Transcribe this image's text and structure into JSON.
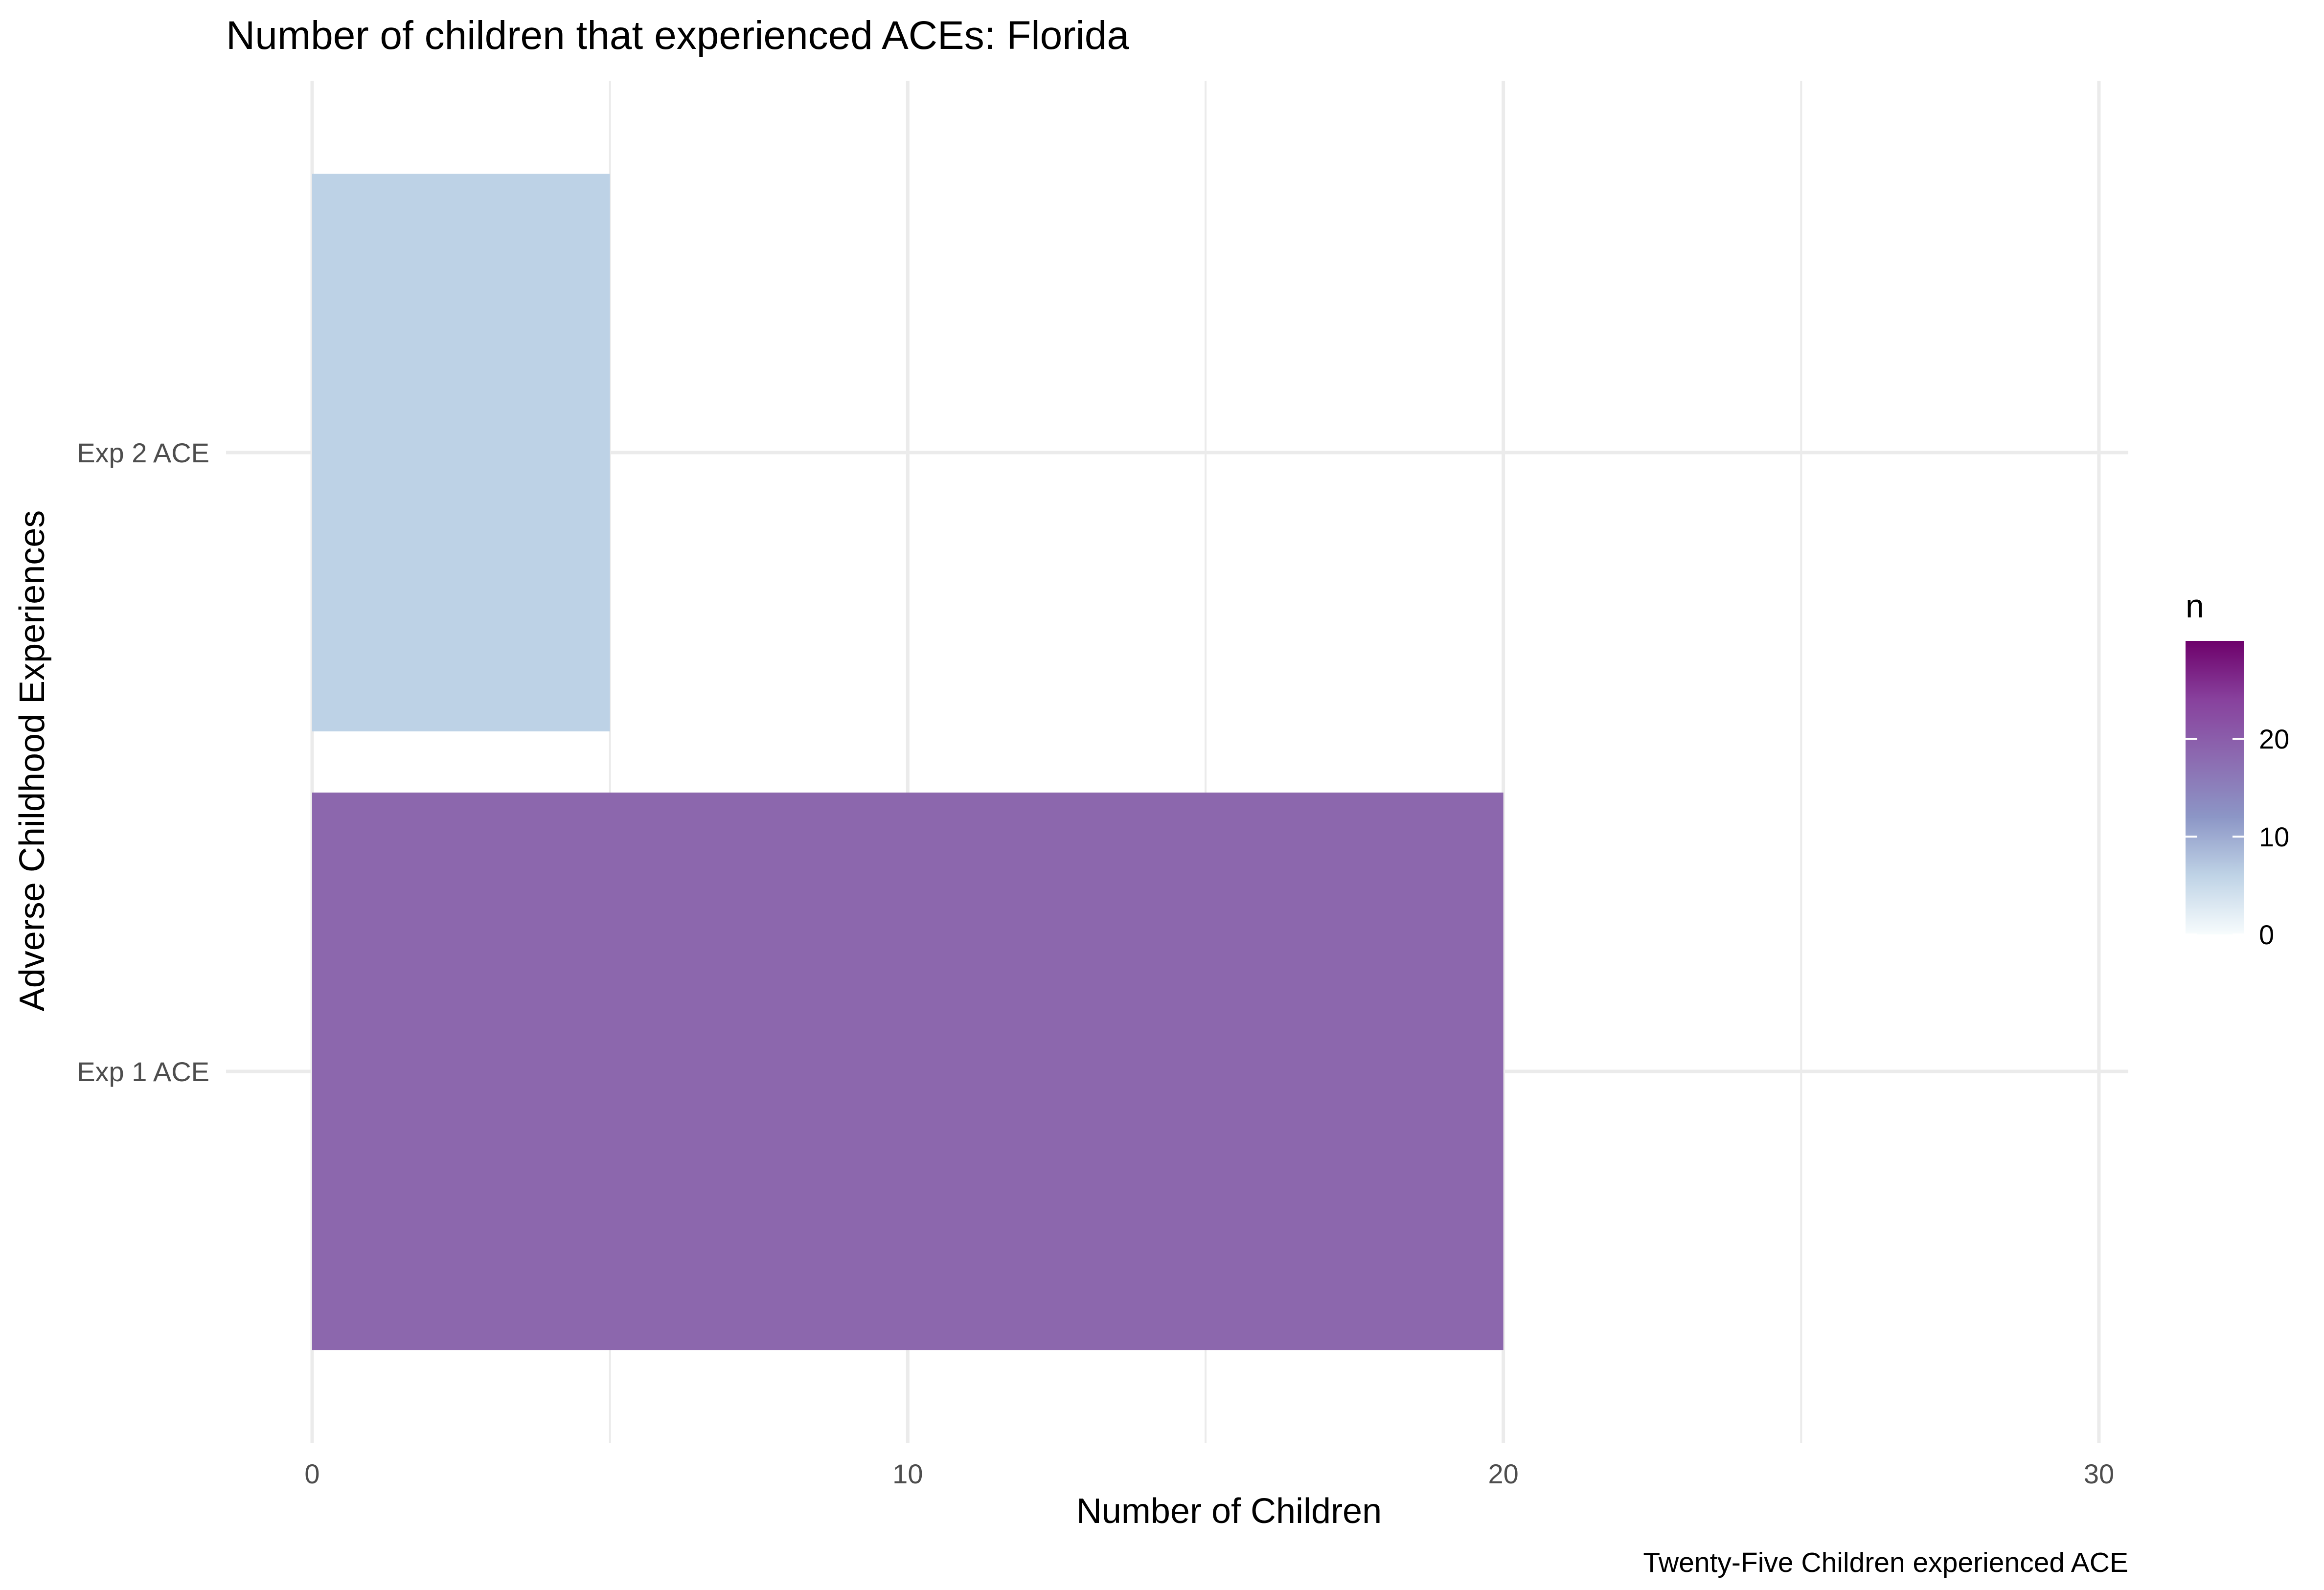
{
  "chart_data": {
    "type": "bar",
    "orientation": "horizontal",
    "title": "Number of children that experienced ACEs: Florida",
    "xlabel": "Number of Children",
    "ylabel": "Adverse Childhood Experiences",
    "caption": "Twenty-Five Children experienced ACE",
    "categories": [
      "Exp 1 ACE",
      "Exp 2 ACE"
    ],
    "values": [
      20,
      5
    ],
    "bar_colors": [
      "#8c67ad",
      "#bdd2e6"
    ],
    "xlim": [
      0,
      30
    ],
    "x_ticks": [
      0,
      10,
      20,
      30
    ],
    "x_tick_labels": [
      "0",
      "10",
      "20",
      "30"
    ],
    "grid": true,
    "legend": {
      "title": "n",
      "type": "colorbar",
      "position": "right",
      "range": [
        0,
        30
      ],
      "ticks": [
        0,
        10,
        20
      ],
      "tick_labels": [
        "0",
        "10",
        "20"
      ],
      "gradient": [
        "#f7fcfd",
        "#bfd3e6",
        "#8c96c6",
        "#8c6bb1",
        "#88419d",
        "#6e016b"
      ]
    }
  }
}
